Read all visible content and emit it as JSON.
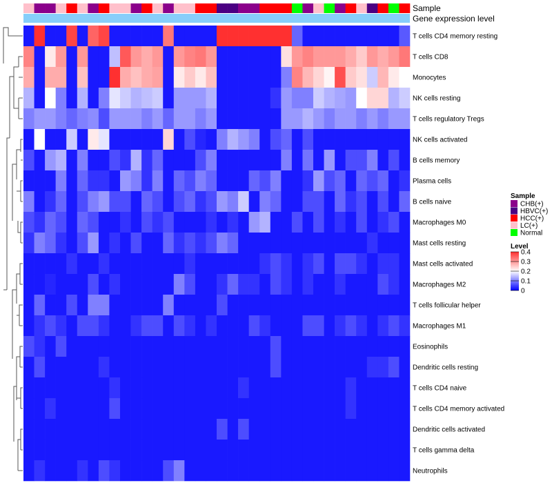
{
  "chart_data": {
    "type": "heatmap",
    "title": "",
    "annotation_tracks": [
      "Sample",
      "Gene expression level"
    ],
    "rows": [
      "T cells CD4 memory resting",
      "T cells CD8",
      "Monocytes",
      "NK cells resting",
      "T cells regulatory  Tregs",
      "NK cells activated",
      "B cells memory",
      "Plasma cells",
      "B cells naive",
      "Macrophages M0",
      "Mast cells resting",
      "Mast cells activated",
      "Macrophages M2",
      "T cells follicular helper",
      "Macrophages M1",
      "Eosinophils",
      "Dendritic cells resting",
      "T cells CD4 naive",
      "T cells CD4 memory activated",
      "Dendritic cells activated",
      "T cells gamma delta",
      "Neutrophils"
    ],
    "sample_groups": [
      "LC(+)",
      "CHB(+)",
      "CHB(+)",
      "LC(+)",
      "HCC(+)",
      "LC(+)",
      "CHB(+)",
      "HCC(+)",
      "LC(+)",
      "LC(+)",
      "CHB(+)",
      "HCC(+)",
      "LC(+)",
      "CHB(+)",
      "LC(+)",
      "LC(+)",
      "HCC(+)",
      "HCC(+)",
      "HBVC(+)",
      "HBVC(+)",
      "CHB(+)",
      "CHB(+)",
      "HCC(+)",
      "HCC(+)",
      "HCC(+)",
      "Normal",
      "CHB(+)",
      "LC(+)",
      "Normal",
      "CHB(+)",
      "HCC(+)",
      "LC(+)",
      "HBVC(+)",
      "HCC(+)",
      "Normal",
      "HCC(+)"
    ],
    "values": [
      [
        0.02,
        0.4,
        0.02,
        0.02,
        0.38,
        0.02,
        0.35,
        0.38,
        0.02,
        0.02,
        0.02,
        0.02,
        0.02,
        0.33,
        0.02,
        0.02,
        0.02,
        0.02,
        0.4,
        0.4,
        0.4,
        0.4,
        0.4,
        0.4,
        0.4,
        0.08,
        0.02,
        0.02,
        0.02,
        0.02,
        0.02,
        0.02,
        0.02,
        0.02,
        0.02,
        0.07
      ],
      [
        0.32,
        0.02,
        0.22,
        0.3,
        0.02,
        0.3,
        0.02,
        0.02,
        0.15,
        0.36,
        0.3,
        0.28,
        0.3,
        0.02,
        0.3,
        0.32,
        0.33,
        0.3,
        0.02,
        0.02,
        0.02,
        0.02,
        0.02,
        0.02,
        0.23,
        0.3,
        0.32,
        0.3,
        0.3,
        0.3,
        0.28,
        0.25,
        0.3,
        0.28,
        0.3,
        0.33
      ],
      [
        0.28,
        0.02,
        0.28,
        0.28,
        0.02,
        0.26,
        0.02,
        0.02,
        0.4,
        0.28,
        0.26,
        0.28,
        0.29,
        0.02,
        0.22,
        0.25,
        0.22,
        0.26,
        0.02,
        0.02,
        0.02,
        0.02,
        0.02,
        0.02,
        0.1,
        0.32,
        0.27,
        0.24,
        0.21,
        0.37,
        0.25,
        0.23,
        0.16,
        0.27,
        0.22,
        0.2
      ],
      [
        0.14,
        0.02,
        0.2,
        0.1,
        0.02,
        0.14,
        0.02,
        0.1,
        0.18,
        0.16,
        0.14,
        0.15,
        0.16,
        0.02,
        0.12,
        0.12,
        0.12,
        0.14,
        0.02,
        0.02,
        0.02,
        0.02,
        0.02,
        0.04,
        0.12,
        0.1,
        0.1,
        0.16,
        0.14,
        0.13,
        0.12,
        0.2,
        0.24,
        0.24,
        0.14,
        0.16
      ],
      [
        0.1,
        0.12,
        0.12,
        0.1,
        0.08,
        0.1,
        0.11,
        0.06,
        0.12,
        0.12,
        0.12,
        0.1,
        0.12,
        0.08,
        0.12,
        0.12,
        0.1,
        0.12,
        0.02,
        0.02,
        0.02,
        0.02,
        0.02,
        0.02,
        0.12,
        0.12,
        0.14,
        0.12,
        0.1,
        0.12,
        0.12,
        0.1,
        0.12,
        0.1,
        0.12,
        0.12
      ],
      [
        0.02,
        0.2,
        0.02,
        0.02,
        0.16,
        0.02,
        0.22,
        0.18,
        0.02,
        0.02,
        0.02,
        0.02,
        0.02,
        0.24,
        0.02,
        0.06,
        0.03,
        0.02,
        0.1,
        0.14,
        0.12,
        0.1,
        0.02,
        0.06,
        0.08,
        0.02,
        0.06,
        0.02,
        0.02,
        0.02,
        0.02,
        0.02,
        0.02,
        0.02,
        0.02,
        0.02
      ],
      [
        0.06,
        0.02,
        0.12,
        0.14,
        0.02,
        0.1,
        0.02,
        0.02,
        0.06,
        0.04,
        0.14,
        0.04,
        0.08,
        0.02,
        0.02,
        0.02,
        0.06,
        0.1,
        0.02,
        0.02,
        0.02,
        0.02,
        0.02,
        0.02,
        0.1,
        0.02,
        0.09,
        0.02,
        0.12,
        0.02,
        0.06,
        0.06,
        0.1,
        0.02,
        0.06,
        0.02
      ],
      [
        0.02,
        0.02,
        0.02,
        0.1,
        0.02,
        0.08,
        0.04,
        0.04,
        0.02,
        0.12,
        0.1,
        0.04,
        0.1,
        0.02,
        0.08,
        0.06,
        0.1,
        0.08,
        0.02,
        0.02,
        0.02,
        0.08,
        0.06,
        0.1,
        0.02,
        0.02,
        0.04,
        0.12,
        0.06,
        0.08,
        0.02,
        0.08,
        0.06,
        0.08,
        0.02,
        0.04
      ],
      [
        0.1,
        0.02,
        0.04,
        0.08,
        0.02,
        0.06,
        0.1,
        0.12,
        0.06,
        0.06,
        0.02,
        0.08,
        0.06,
        0.02,
        0.06,
        0.08,
        0.04,
        0.06,
        0.12,
        0.1,
        0.16,
        0.02,
        0.1,
        0.08,
        0.02,
        0.02,
        0.06,
        0.06,
        0.02,
        0.08,
        0.04,
        0.06,
        0.02,
        0.06,
        0.02,
        0.08
      ],
      [
        0.06,
        0.04,
        0.08,
        0.06,
        0.02,
        0.08,
        0.06,
        0.02,
        0.02,
        0.04,
        0.02,
        0.06,
        0.04,
        0.06,
        0.02,
        0.02,
        0.02,
        0.04,
        0.02,
        0.04,
        0.02,
        0.12,
        0.14,
        0.02,
        0.02,
        0.06,
        0.02,
        0.06,
        0.02,
        0.04,
        0.02,
        0.06,
        0.02,
        0.04,
        0.06,
        0.02
      ],
      [
        0.04,
        0.1,
        0.08,
        0.04,
        0.02,
        0.06,
        0.12,
        0.02,
        0.04,
        0.02,
        0.06,
        0.02,
        0.02,
        0.08,
        0.04,
        0.06,
        0.04,
        0.06,
        0.1,
        0.08,
        0.02,
        0.02,
        0.02,
        0.02,
        0.02,
        0.02,
        0.02,
        0.02,
        0.02,
        0.02,
        0.02,
        0.02,
        0.04,
        0.02,
        0.02,
        0.02
      ],
      [
        0.02,
        0.02,
        0.02,
        0.02,
        0.04,
        0.02,
        0.02,
        0.04,
        0.02,
        0.02,
        0.02,
        0.02,
        0.02,
        0.02,
        0.02,
        0.04,
        0.02,
        0.02,
        0.02,
        0.02,
        0.02,
        0.02,
        0.04,
        0.06,
        0.04,
        0.02,
        0.04,
        0.06,
        0.02,
        0.06,
        0.06,
        0.04,
        0.02,
        0.04,
        0.04,
        0.02
      ],
      [
        0.02,
        0.02,
        0.03,
        0.02,
        0.02,
        0.02,
        0.06,
        0.02,
        0.04,
        0.02,
        0.02,
        0.02,
        0.02,
        0.02,
        0.1,
        0.06,
        0.02,
        0.02,
        0.04,
        0.08,
        0.04,
        0.04,
        0.02,
        0.06,
        0.04,
        0.02,
        0.04,
        0.02,
        0.02,
        0.04,
        0.02,
        0.02,
        0.02,
        0.06,
        0.04,
        0.02
      ],
      [
        0.02,
        0.08,
        0.02,
        0.02,
        0.06,
        0.02,
        0.1,
        0.1,
        0.02,
        0.02,
        0.02,
        0.02,
        0.02,
        0.1,
        0.02,
        0.02,
        0.02,
        0.02,
        0.06,
        0.02,
        0.02,
        0.02,
        0.02,
        0.02,
        0.02,
        0.02,
        0.02,
        0.02,
        0.02,
        0.02,
        0.02,
        0.02,
        0.02,
        0.02,
        0.02,
        0.02
      ],
      [
        0.02,
        0.04,
        0.06,
        0.04,
        0.02,
        0.06,
        0.06,
        0.04,
        0.02,
        0.02,
        0.04,
        0.06,
        0.06,
        0.02,
        0.06,
        0.04,
        0.02,
        0.04,
        0.02,
        0.02,
        0.02,
        0.06,
        0.04,
        0.02,
        0.02,
        0.02,
        0.06,
        0.06,
        0.02,
        0.04,
        0.06,
        0.04,
        0.02,
        0.04,
        0.06,
        0.04
      ],
      [
        0.06,
        0.04,
        0.02,
        0.06,
        0.02,
        0.02,
        0.02,
        0.02,
        0.02,
        0.02,
        0.02,
        0.02,
        0.02,
        0.02,
        0.02,
        0.02,
        0.02,
        0.02,
        0.02,
        0.02,
        0.02,
        0.02,
        0.02,
        0.06,
        0.02,
        0.02,
        0.02,
        0.02,
        0.02,
        0.02,
        0.02,
        0.02,
        0.02,
        0.02,
        0.02,
        0.02
      ],
      [
        0.02,
        0.06,
        0.02,
        0.02,
        0.02,
        0.02,
        0.02,
        0.04,
        0.02,
        0.02,
        0.02,
        0.02,
        0.02,
        0.02,
        0.02,
        0.02,
        0.02,
        0.02,
        0.02,
        0.02,
        0.02,
        0.02,
        0.02,
        0.06,
        0.02,
        0.02,
        0.02,
        0.02,
        0.02,
        0.02,
        0.02,
        0.02,
        0.04,
        0.04,
        0.06,
        0.02
      ],
      [
        0.02,
        0.02,
        0.02,
        0.02,
        0.02,
        0.02,
        0.02,
        0.02,
        0.04,
        0.02,
        0.02,
        0.02,
        0.02,
        0.02,
        0.02,
        0.02,
        0.02,
        0.02,
        0.02,
        0.02,
        0.04,
        0.02,
        0.02,
        0.02,
        0.02,
        0.02,
        0.02,
        0.02,
        0.02,
        0.02,
        0.04,
        0.02,
        0.02,
        0.02,
        0.02,
        0.02
      ],
      [
        0.02,
        0.02,
        0.04,
        0.02,
        0.02,
        0.02,
        0.02,
        0.02,
        0.06,
        0.02,
        0.02,
        0.02,
        0.02,
        0.02,
        0.02,
        0.02,
        0.02,
        0.02,
        0.02,
        0.02,
        0.02,
        0.02,
        0.02,
        0.02,
        0.02,
        0.02,
        0.02,
        0.02,
        0.02,
        0.02,
        0.04,
        0.02,
        0.02,
        0.02,
        0.02,
        0.02
      ],
      [
        0.02,
        0.02,
        0.02,
        0.02,
        0.02,
        0.02,
        0.02,
        0.02,
        0.02,
        0.02,
        0.02,
        0.02,
        0.02,
        0.02,
        0.02,
        0.02,
        0.02,
        0.02,
        0.06,
        0.02,
        0.06,
        0.02,
        0.02,
        0.02,
        0.02,
        0.02,
        0.02,
        0.02,
        0.02,
        0.02,
        0.02,
        0.02,
        0.02,
        0.02,
        0.02,
        0.02
      ],
      [
        0.02,
        0.02,
        0.02,
        0.02,
        0.02,
        0.02,
        0.02,
        0.02,
        0.02,
        0.02,
        0.02,
        0.02,
        0.02,
        0.02,
        0.02,
        0.02,
        0.02,
        0.02,
        0.02,
        0.02,
        0.02,
        0.02,
        0.02,
        0.02,
        0.02,
        0.02,
        0.02,
        0.02,
        0.02,
        0.02,
        0.02,
        0.02,
        0.02,
        0.02,
        0.02,
        0.02
      ],
      [
        0.02,
        0.04,
        0.02,
        0.02,
        0.02,
        0.04,
        0.02,
        0.06,
        0.04,
        0.02,
        0.02,
        0.02,
        0.02,
        0.06,
        0.1,
        0.02,
        0.02,
        0.02,
        0.02,
        0.02,
        0.02,
        0.02,
        0.02,
        0.02,
        0.02,
        0.02,
        0.02,
        0.02,
        0.02,
        0.02,
        0.02,
        0.02,
        0.02,
        0.02,
        0.02,
        0.02
      ]
    ],
    "legend": {
      "sample": {
        "title": "Sample",
        "items": [
          {
            "label": "CHB(+)",
            "color": "#8B008B"
          },
          {
            "label": "HBVC(+)",
            "color": "#4B0082"
          },
          {
            "label": "HCC(+)",
            "color": "#FF0000"
          },
          {
            "label": "LC(+)",
            "color": "#FFC0CB"
          },
          {
            "label": "Normal",
            "color": "#00FF00"
          }
        ]
      },
      "level": {
        "title": "Level",
        "ticks": [
          "0.4",
          "0.3",
          "0.2",
          "0.1",
          "0"
        ],
        "tick_values": [
          0.4,
          0.3,
          0.2,
          0.1,
          0
        ],
        "range": [
          0,
          0.4
        ]
      }
    },
    "colors": {
      "low": "#0000FF",
      "mid": "#FFFFFF",
      "high": "#FF3030",
      "expression_track": "#87CEFA"
    }
  }
}
